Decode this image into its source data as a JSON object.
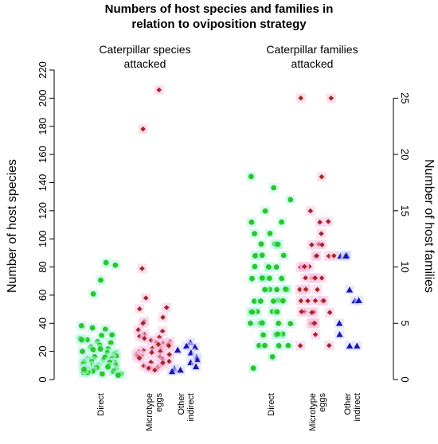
{
  "chart_data": {
    "type": "scatter",
    "title_line1": "Numbers of host species and families in",
    "title_line2": "relation to oviposition strategy",
    "panels": [
      {
        "subtitle_line1": "Caterpillar species",
        "subtitle_line2": "attacked",
        "ylabel": "Number of host species",
        "axis": "left",
        "ylim": [
          0,
          220
        ],
        "yticks": [
          0,
          20,
          40,
          60,
          80,
          100,
          120,
          140,
          160,
          180,
          200,
          220
        ],
        "yticklabels": [
          "0",
          "20",
          "40",
          "60",
          "80",
          "100",
          "120",
          "140",
          "160",
          "180",
          "200",
          "220"
        ],
        "categories": [
          {
            "lines": [
              "Direct"
            ]
          },
          {
            "lines": [
              "Microtype",
              "eggs"
            ]
          },
          {
            "lines": [
              "Other",
              "indirect"
            ]
          }
        ],
        "series": [
          {
            "marker": "circle",
            "color": "#22cc22",
            "values": [
              83,
              81,
              71,
              61,
              38,
              37,
              36,
              32,
              31,
              29,
              28,
              27,
              26,
              24,
              23,
              22,
              21,
              20,
              19,
              19,
              18,
              17,
              16,
              15,
              15,
              14,
              14,
              13,
              13,
              12,
              12,
              11,
              11,
              10,
              10,
              10,
              9,
              9,
              8,
              8,
              8,
              7,
              7,
              6,
              6,
              5,
              5,
              4,
              4,
              3,
              28,
              22,
              16,
              12,
              9,
              7
            ]
          },
          {
            "marker": "diamond",
            "color": "#b22222",
            "values": [
              206,
              178,
              79,
              58,
              51,
              50,
              44,
              41,
              40,
              35,
              34,
              32,
              31,
              30,
              29,
              28,
              27,
              26,
              26,
              25,
              24,
              23,
              22,
              22,
              21,
              20,
              20,
              19,
              18,
              17,
              17,
              16,
              15,
              14,
              13,
              12,
              11,
              10,
              9,
              8,
              8,
              7,
              25,
              18,
              12
            ]
          },
          {
            "marker": "triangle",
            "color": "#1414cc",
            "values": [
              26,
              24,
              23,
              21,
              19,
              16,
              14,
              12,
              9,
              8,
              7,
              6
            ]
          }
        ]
      },
      {
        "subtitle_line1": "Caterpillar families",
        "subtitle_line2": "attacked",
        "ylabel": "Number of host families",
        "axis": "right",
        "ylim": [
          0,
          27.5
        ],
        "yticks": [
          0,
          5,
          10,
          15,
          20,
          25
        ],
        "yticklabels": [
          "0",
          "5",
          "10",
          "15",
          "20",
          "25"
        ],
        "categories": [
          {
            "lines": [
              "Direct"
            ]
          },
          {
            "lines": [
              "Microtype",
              "eggs"
            ]
          },
          {
            "lines": [
              "Other",
              "indirect"
            ]
          }
        ],
        "series": [
          {
            "marker": "circle",
            "color": "#22cc22",
            "values": [
              18,
              17,
              16,
              15,
              14,
              14,
              13,
              13,
              12,
              12,
              12,
              12,
              11,
              11,
              11,
              11,
              10,
              10,
              10,
              10,
              9,
              9,
              9,
              9,
              9,
              8,
              8,
              8,
              8,
              8,
              7,
              7,
              7,
              7,
              7,
              6,
              6,
              6,
              6,
              6,
              5,
              5,
              5,
              5,
              5,
              4,
              4,
              4,
              4,
              3,
              3,
              3,
              3,
              2,
              1
            ]
          },
          {
            "marker": "diamond",
            "color": "#b22222",
            "values": [
              25,
              25,
              18,
              15,
              14,
              14,
              13,
              12,
              12,
              12,
              11,
              11,
              11,
              11,
              10,
              10,
              10,
              10,
              10,
              9,
              9,
              9,
              9,
              9,
              8,
              8,
              8,
              8,
              8,
              7,
              7,
              7,
              7,
              7,
              6,
              6,
              6,
              6,
              6,
              5,
              5,
              5,
              5,
              5,
              4,
              3,
              3
            ]
          },
          {
            "marker": "triangle",
            "color": "#1414cc",
            "values": [
              11,
              11,
              11,
              11,
              8,
              7,
              7,
              5,
              4,
              3,
              3
            ]
          }
        ]
      }
    ],
    "grid": false,
    "legend": "none"
  }
}
